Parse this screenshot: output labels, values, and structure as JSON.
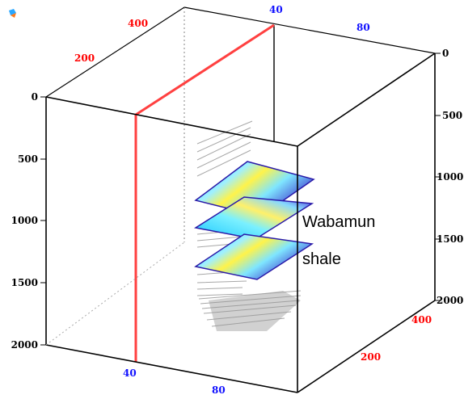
{
  "view": {
    "depth_ticks_left": [
      "0",
      "500",
      "1000",
      "1500",
      "2000"
    ],
    "depth_ticks_right": [
      "0",
      "500",
      "1000",
      "1500",
      "2000"
    ],
    "x_ticks_front": [
      "40",
      "80"
    ],
    "x_ticks_back": [
      "40",
      "80"
    ],
    "y_ticks_top_left": [
      "200",
      "400"
    ],
    "y_ticks_bottom_right": [
      "200",
      "400"
    ],
    "horizon_labels": [
      "Wabamun",
      "shale"
    ],
    "colors": {
      "box": "#000000",
      "well_path": "#ff4040",
      "tick_red": "#ff0000",
      "tick_blue": "#1010ff",
      "surface_cool": "#2ad6ff",
      "surface_warm": "#fff34a",
      "surface_edge": "#3a2bc9"
    }
  }
}
